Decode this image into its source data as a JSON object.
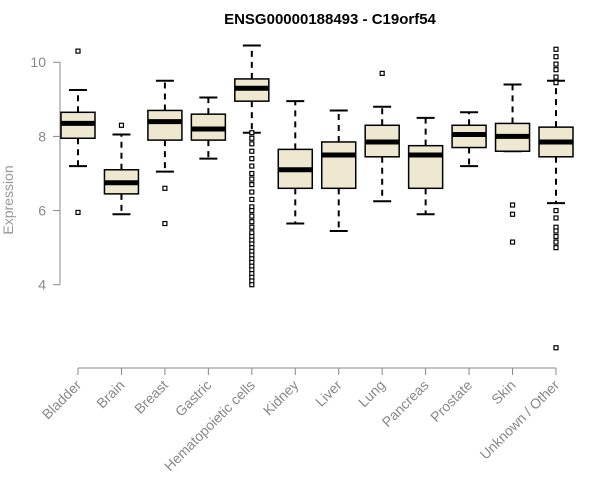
{
  "chart_data": {
    "type": "boxplot",
    "title": "ENSG00000188493 - C19orf54",
    "xlabel": "",
    "ylabel": "Expression",
    "ylim": [
      1.7,
      10.6
    ],
    "yticks": [
      4,
      6,
      8,
      10
    ],
    "colors": {
      "box_fill": "#EEE8D0",
      "stroke": "#000000",
      "axis": "#888888"
    },
    "categories": [
      "Bladder",
      "Brain",
      "Breast",
      "Gastric",
      "Hematopoietic cells",
      "Kidney",
      "Liver",
      "Lung",
      "Pancreas",
      "Prostate",
      "Skin",
      "Unknown / Other"
    ],
    "boxes": [
      {
        "name": "Bladder",
        "whisker_low": 7.2,
        "q1": 7.95,
        "median": 8.35,
        "q3": 8.65,
        "whisker_high": 9.25,
        "outliers": [
          10.3,
          5.95
        ]
      },
      {
        "name": "Brain",
        "whisker_low": 5.9,
        "q1": 6.45,
        "median": 6.75,
        "q3": 7.1,
        "whisker_high": 8.05,
        "outliers": [
          8.3
        ]
      },
      {
        "name": "Breast",
        "whisker_low": 7.05,
        "q1": 7.9,
        "median": 8.4,
        "q3": 8.7,
        "whisker_high": 9.5,
        "outliers": [
          6.6,
          5.65
        ]
      },
      {
        "name": "Gastric",
        "whisker_low": 7.4,
        "q1": 7.9,
        "median": 8.2,
        "q3": 8.6,
        "whisker_high": 9.05,
        "outliers": []
      },
      {
        "name": "Hematopoietic cells",
        "whisker_low": 8.1,
        "q1": 8.95,
        "median": 9.3,
        "q3": 9.55,
        "whisker_high": 10.45,
        "outliers": [
          8.1,
          7.95,
          7.8,
          7.6,
          7.4,
          7.2,
          7.0,
          6.85,
          6.7,
          6.5,
          6.3,
          6.1,
          6.0,
          5.85,
          5.7,
          5.55,
          5.4,
          5.3,
          5.2,
          5.1,
          5.0,
          4.9,
          4.8,
          4.7,
          4.6,
          4.5,
          4.4,
          4.3,
          4.2,
          4.1,
          4.0
        ]
      },
      {
        "name": "Kidney",
        "whisker_low": 5.65,
        "q1": 6.6,
        "median": 7.1,
        "q3": 7.65,
        "whisker_high": 8.95,
        "outliers": []
      },
      {
        "name": "Liver",
        "whisker_low": 5.45,
        "q1": 6.6,
        "median": 7.5,
        "q3": 7.85,
        "whisker_high": 8.7,
        "outliers": []
      },
      {
        "name": "Lung",
        "whisker_low": 6.25,
        "q1": 7.45,
        "median": 7.85,
        "q3": 8.3,
        "whisker_high": 8.8,
        "outliers": [
          9.7
        ]
      },
      {
        "name": "Pancreas",
        "whisker_low": 5.9,
        "q1": 6.6,
        "median": 7.5,
        "q3": 7.75,
        "whisker_high": 8.5,
        "outliers": []
      },
      {
        "name": "Prostate",
        "whisker_low": 7.2,
        "q1": 7.7,
        "median": 8.05,
        "q3": 8.3,
        "whisker_high": 8.65,
        "outliers": []
      },
      {
        "name": "Skin",
        "whisker_low": 7.6,
        "q1": 7.6,
        "median": 8.0,
        "q3": 8.35,
        "whisker_high": 9.4,
        "outliers": [
          6.15,
          5.9,
          5.15
        ]
      },
      {
        "name": "Unknown / Other",
        "whisker_low": 6.2,
        "q1": 7.45,
        "median": 7.85,
        "q3": 8.25,
        "whisker_high": 9.5,
        "outliers": [
          10.35,
          10.15,
          9.95,
          9.8,
          9.6,
          9.45,
          6.0,
          5.8,
          5.55,
          5.45,
          5.3,
          5.15,
          5.0,
          2.3
        ]
      }
    ]
  }
}
